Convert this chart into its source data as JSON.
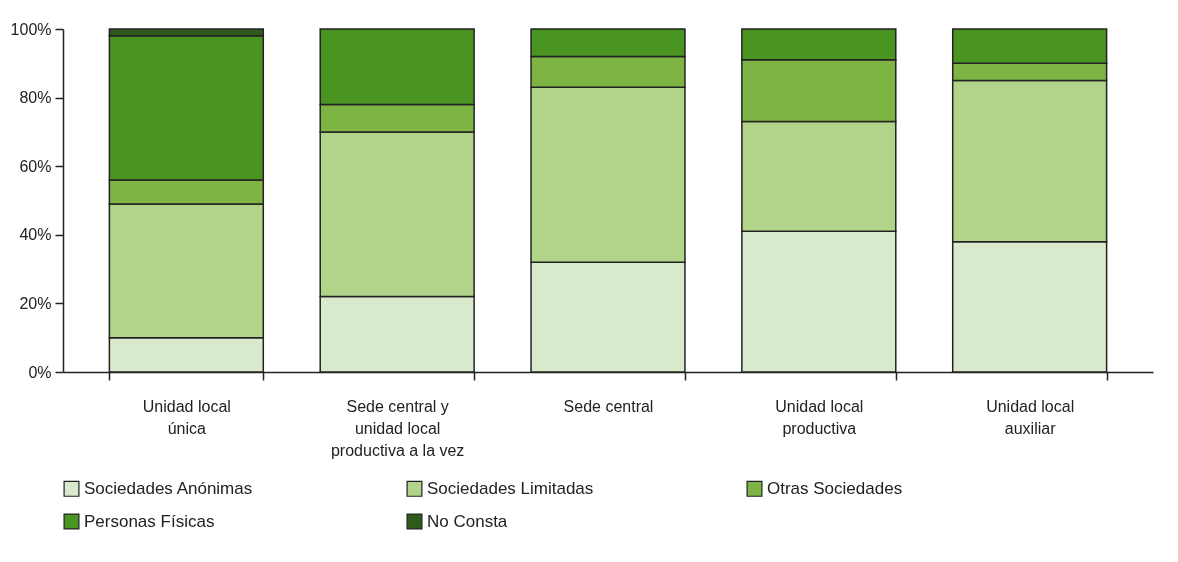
{
  "chart_data": {
    "type": "bar",
    "stacked": true,
    "grid": false,
    "legend": "bottom",
    "categories": [
      "Unidad local única",
      "Sede central y unidad local productiva a la vez",
      "Sede central",
      "Unidad local productiva",
      "Unidad local auxiliar"
    ],
    "ylim": [
      0,
      100
    ],
    "yticks": [
      {
        "value": 0,
        "label": "0%"
      },
      {
        "value": 20,
        "label": "20%"
      },
      {
        "value": 40,
        "label": "40%"
      },
      {
        "value": 60,
        "label": "60%"
      },
      {
        "value": 80,
        "label": "80%"
      },
      {
        "value": 100,
        "label": "100%"
      }
    ],
    "series": [
      {
        "name": "Sociedades Anónimas",
        "color": "#d8eacb",
        "values": [
          10,
          22,
          32,
          41,
          38
        ]
      },
      {
        "name": "Sociedades Limitadas",
        "color": "#b1d48a",
        "values": [
          39,
          48,
          51,
          32,
          47
        ]
      },
      {
        "name": "Otras Sociedades",
        "color": "#7db443",
        "values": [
          7,
          8,
          9,
          18,
          5
        ]
      },
      {
        "name": "Personas Físicas",
        "color": "#4a9522",
        "values": [
          42,
          22,
          8,
          9,
          10
        ]
      },
      {
        "name": "No Consta",
        "color": "#2e5a1c",
        "values": [
          2,
          null,
          null,
          null,
          null
        ]
      }
    ]
  }
}
